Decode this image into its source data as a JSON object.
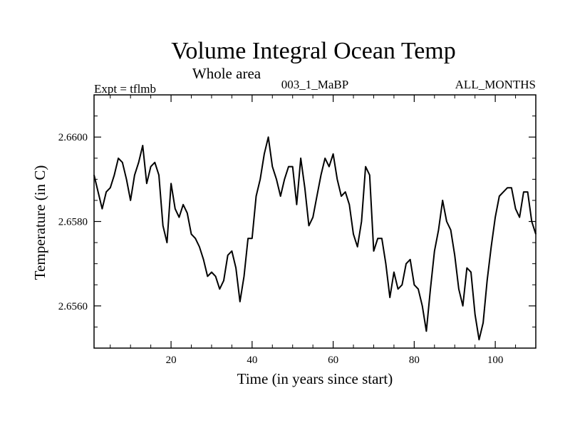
{
  "chart_data": {
    "type": "line",
    "title": "Volume Integral Ocean Temp",
    "subtitle": "Whole area",
    "left_label": "Expt = tflmb",
    "center_label": "003_1_MaBP",
    "right_label": "ALL_MONTHS",
    "xlabel": "Time (in years since start)",
    "ylabel": "Temperature (in C)",
    "xlim": [
      1,
      110
    ],
    "ylim": [
      2.655,
      2.661
    ],
    "x_ticks": [
      20,
      40,
      60,
      80,
      100
    ],
    "x_tick_labels": [
      "20",
      "40",
      "60",
      "80",
      "100"
    ],
    "y_ticks": [
      2.656,
      2.658,
      2.66
    ],
    "y_tick_labels": [
      "2.6560",
      "2.6580",
      "2.6600"
    ],
    "line_color": "#000000",
    "series": [
      {
        "name": "Volume Integral Ocean Temp",
        "x": [
          1,
          2,
          3,
          4,
          5,
          6,
          7,
          8,
          9,
          10,
          11,
          12,
          13,
          14,
          15,
          16,
          17,
          18,
          19,
          20,
          21,
          22,
          23,
          24,
          25,
          26,
          27,
          28,
          29,
          30,
          31,
          32,
          33,
          34,
          35,
          36,
          37,
          38,
          39,
          40,
          41,
          42,
          43,
          44,
          45,
          46,
          47,
          48,
          49,
          50,
          51,
          52,
          53,
          54,
          55,
          56,
          57,
          58,
          59,
          60,
          61,
          62,
          63,
          64,
          65,
          66,
          67,
          68,
          69,
          70,
          71,
          72,
          73,
          74,
          75,
          76,
          77,
          78,
          79,
          80,
          81,
          82,
          83,
          84,
          85,
          86,
          87,
          88,
          89,
          90,
          91,
          92,
          93,
          94,
          95,
          96,
          97,
          98,
          99,
          100,
          101,
          102,
          103,
          104,
          105,
          106,
          107,
          108,
          109,
          110
        ],
        "values": [
          2.6591,
          2.6587,
          2.6583,
          2.6587,
          2.6588,
          2.6591,
          2.6595,
          2.6594,
          2.659,
          2.6585,
          2.6591,
          2.6594,
          2.6598,
          2.6589,
          2.6593,
          2.6594,
          2.6591,
          2.6579,
          2.6575,
          2.6589,
          2.6583,
          2.6581,
          2.6584,
          2.6582,
          2.6577,
          2.6576,
          2.6574,
          2.6571,
          2.6567,
          2.6568,
          2.6567,
          2.6564,
          2.6566,
          2.6572,
          2.6573,
          2.6569,
          2.6561,
          2.6567,
          2.6576,
          2.6576,
          2.6586,
          2.659,
          2.6596,
          2.66,
          2.6593,
          2.659,
          2.6586,
          2.659,
          2.6593,
          2.6593,
          2.6584,
          2.6595,
          2.6588,
          2.6579,
          2.6581,
          2.6586,
          2.6591,
          2.6595,
          2.6593,
          2.6596,
          2.659,
          2.6586,
          2.6587,
          2.6584,
          2.6577,
          2.6574,
          2.658,
          2.6593,
          2.6591,
          2.6573,
          2.6576,
          2.6576,
          2.657,
          2.6562,
          2.6568,
          2.6564,
          2.6565,
          2.657,
          2.6571,
          2.6565,
          2.6564,
          2.656,
          2.6554,
          2.6564,
          2.6573,
          2.6578,
          2.6585,
          2.658,
          2.6578,
          2.6572,
          2.6564,
          2.656,
          2.6569,
          2.6568,
          2.6558,
          2.6552,
          2.6556,
          2.6566,
          2.6574,
          2.6581,
          2.6586,
          2.6587,
          2.6588,
          2.6588,
          2.6583,
          2.6581,
          2.6587,
          2.6587,
          2.658,
          2.6577
        ]
      }
    ]
  }
}
